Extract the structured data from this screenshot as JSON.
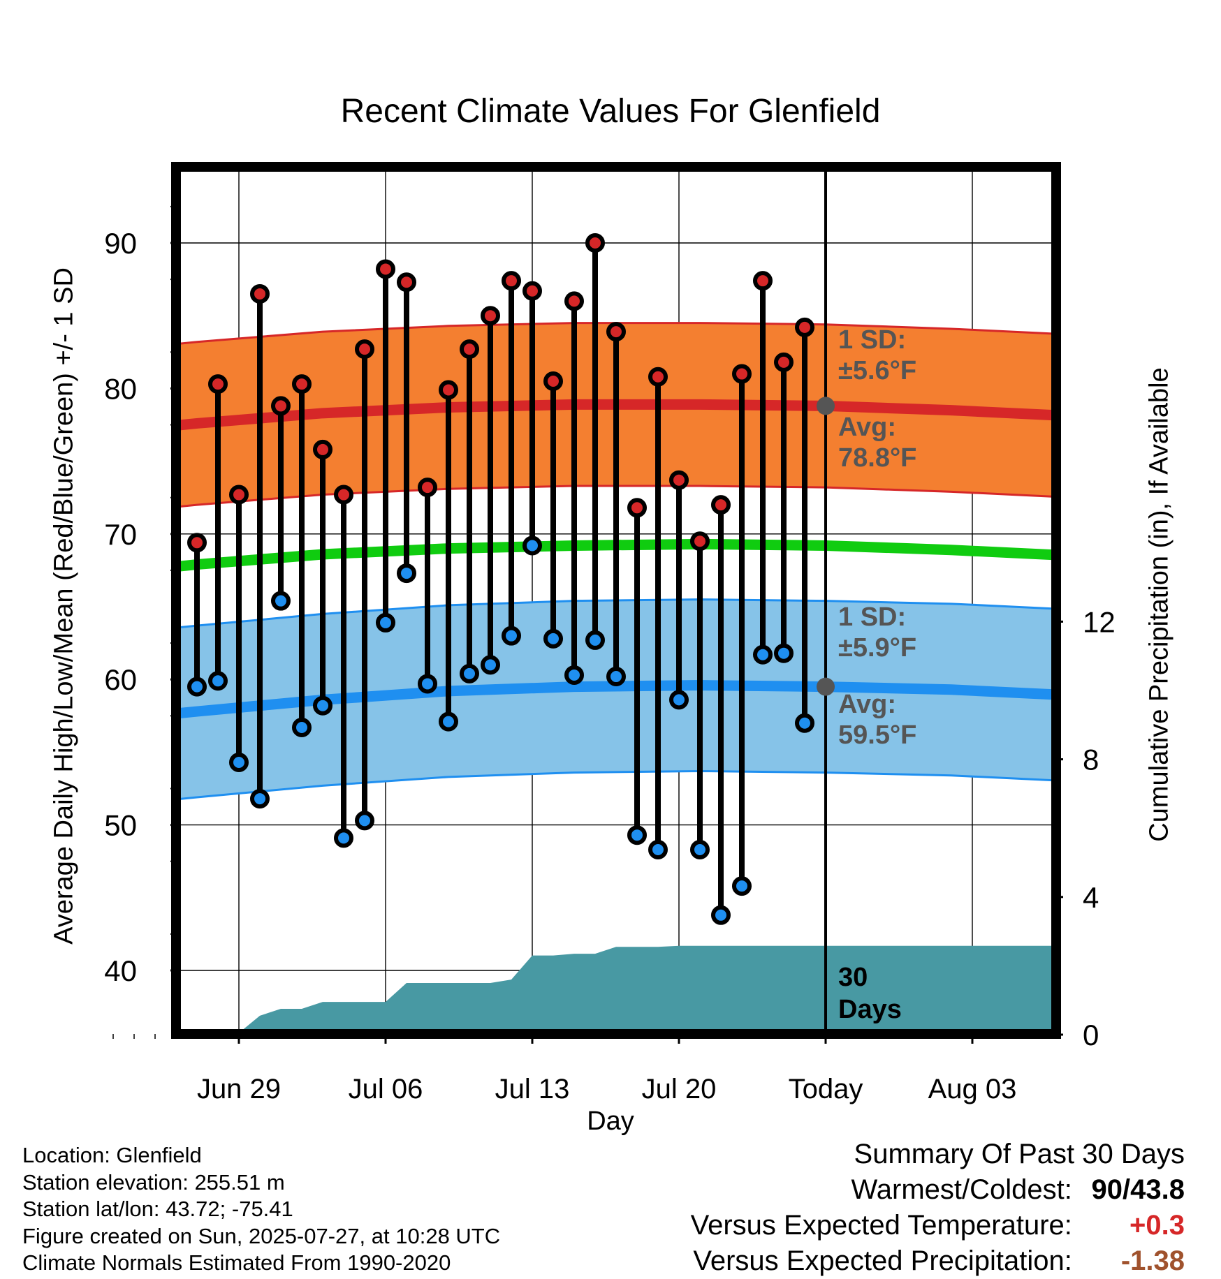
{
  "figure": {
    "title": "Recent Climate Values For Glenfield",
    "ylabel_left": "Average Daily High/Low/Mean (Red/Blue/Green) +/- 1 SD",
    "ylabel_right": "Cumulative Precipitation (in), If Available",
    "xlabel": "Day"
  },
  "annotations": {
    "high_sd": "1 SD:",
    "high_sd_val": "±5.6°F",
    "high_avg": "Avg:",
    "high_avg_val": "78.8°F",
    "low_sd": "1 SD:",
    "low_sd_val": "±5.9°F",
    "low_avg": "Avg:",
    "low_avg_val": "59.5°F",
    "days_a": "30",
    "days_b": "Days"
  },
  "metadata": {
    "location": "Location: Glenfield",
    "elevation": "Station elevation: 255.51 m",
    "latlon": "Station lat/lon: 43.72; -75.41",
    "created": "Figure created on Sun, 2025-07-27, at 10:28 UTC",
    "normals": "Climate Normals Estimated From 1990-2020"
  },
  "summary": {
    "heading": "Summary Of Past 30 Days",
    "warm_cold_label": "Warmest/Coldest:",
    "warm_cold_value": "90/43.8",
    "temp_label": "Versus Expected Temperature:",
    "temp_value": "+0.3",
    "precip_label": "Versus Expected Precipitation:",
    "precip_value": "-1.38"
  },
  "colors": {
    "high_band": "#f47f30",
    "high_line": "#d62728",
    "low_band": "#86c3e8",
    "low_line": "#1f8ff0",
    "mean_line": "#10cc10",
    "precip_fill": "#4899a3",
    "high_marker": "#d62728",
    "low_marker": "#1f8ff0",
    "annotation_text": "#555555",
    "temp_value": "#d62728",
    "precip_value": "#a0522d"
  },
  "chart_data": {
    "type": "line",
    "title": "Recent Climate Values For Glenfield",
    "xlabel": "Day",
    "ylabel": "Average Daily High/Low/Mean (Red/Blue/Green) +/- 1 SD",
    "y2label": "Cumulative Precipitation (in), If Available",
    "ylim": [
      35.5,
      95.5
    ],
    "y_ticks": [
      40,
      50,
      60,
      70,
      80,
      90
    ],
    "y2lim": [
      0,
      25
    ],
    "y2_ticks": [
      0,
      4,
      8,
      12
    ],
    "x_range_days": [
      -36.2,
      11.8
    ],
    "x_tick_labels": [
      {
        "day": -28,
        "label": "Jun 29"
      },
      {
        "day": -21,
        "label": "Jul 06"
      },
      {
        "day": -14,
        "label": "Jul 13"
      },
      {
        "day": -7,
        "label": "Jul 20"
      },
      {
        "day": 0,
        "label": "Today"
      },
      {
        "day": 7,
        "label": "Aug 03"
      }
    ],
    "today_day": 0,
    "grid": true,
    "daily_observations": [
      {
        "day": -30,
        "high": 69.4,
        "low": 59.5
      },
      {
        "day": -29,
        "high": 80.3,
        "low": 59.9
      },
      {
        "day": -28,
        "high": 72.7,
        "low": 54.3
      },
      {
        "day": -27,
        "high": 86.5,
        "low": 51.8
      },
      {
        "day": -26,
        "high": 78.8,
        "low": 65.4
      },
      {
        "day": -25,
        "high": 80.3,
        "low": 56.7
      },
      {
        "day": -24,
        "high": 75.8,
        "low": 58.2
      },
      {
        "day": -23,
        "high": 72.7,
        "low": 49.1
      },
      {
        "day": -22,
        "high": 82.7,
        "low": 50.3
      },
      {
        "day": -21,
        "high": 88.2,
        "low": 63.9
      },
      {
        "day": -20,
        "high": 87.3,
        "low": 67.3
      },
      {
        "day": -19,
        "high": 73.2,
        "low": 59.7
      },
      {
        "day": -18,
        "high": 79.9,
        "low": 57.1
      },
      {
        "day": -17,
        "high": 82.7,
        "low": 60.4
      },
      {
        "day": -16,
        "high": 85.0,
        "low": 61.0
      },
      {
        "day": -15,
        "high": 87.4,
        "low": 63.0
      },
      {
        "day": -14,
        "high": 86.7,
        "low": 69.2
      },
      {
        "day": -13,
        "high": 80.5,
        "low": 62.8
      },
      {
        "day": -12,
        "high": 86.0,
        "low": 60.3
      },
      {
        "day": -11,
        "high": 90.0,
        "low": 62.7
      },
      {
        "day": -10,
        "high": 83.9,
        "low": 60.2
      },
      {
        "day": -9,
        "high": 71.8,
        "low": 49.3
      },
      {
        "day": -8,
        "high": 80.8,
        "low": 48.3
      },
      {
        "day": -7,
        "high": 73.7,
        "low": 58.6
      },
      {
        "day": -6,
        "high": 69.5,
        "low": 48.3
      },
      {
        "day": -5,
        "high": 72.0,
        "low": 43.8
      },
      {
        "day": -4,
        "high": 81.0,
        "low": 45.8
      },
      {
        "day": -3,
        "high": 87.4,
        "low": 61.7
      },
      {
        "day": -2,
        "high": 81.8,
        "low": 61.8
      },
      {
        "day": -1,
        "high": 84.2,
        "low": 57.0
      }
    ],
    "normals": {
      "days": [
        -36.2,
        -30,
        -24,
        -18,
        -12,
        -6,
        0,
        6,
        11.8
      ],
      "high_avg": [
        76.7,
        77.6,
        78.3,
        78.7,
        78.9,
        78.9,
        78.8,
        78.5,
        78.1
      ],
      "low_avg": [
        56.9,
        57.8,
        58.6,
        59.2,
        59.5,
        59.6,
        59.5,
        59.3,
        58.9
      ],
      "mean_avg": [
        67.0,
        67.9,
        68.6,
        69.0,
        69.2,
        69.3,
        69.2,
        68.9,
        68.5
      ],
      "high_sd": 5.6,
      "low_sd": 5.9
    },
    "cumulative_precipitation": {
      "days": [
        -36.2,
        -30,
        -29,
        -28,
        -27,
        -26,
        -25,
        -24,
        -23,
        -22,
        -21,
        -20,
        -19,
        -18,
        -17,
        -16,
        -15,
        -14,
        -13,
        -12,
        -11,
        -10,
        -9,
        -8,
        -7,
        -6,
        -5,
        -4,
        -3,
        -2,
        -1,
        0,
        11.8
      ],
      "values": [
        0,
        0,
        0.05,
        0.05,
        0.55,
        0.75,
        0.75,
        0.95,
        0.95,
        0.95,
        0.95,
        1.5,
        1.5,
        1.5,
        1.5,
        1.5,
        1.6,
        2.3,
        2.3,
        2.35,
        2.35,
        2.55,
        2.55,
        2.55,
        2.58,
        2.58,
        2.58,
        2.58,
        2.58,
        2.58,
        2.58,
        2.58,
        2.58
      ]
    }
  }
}
